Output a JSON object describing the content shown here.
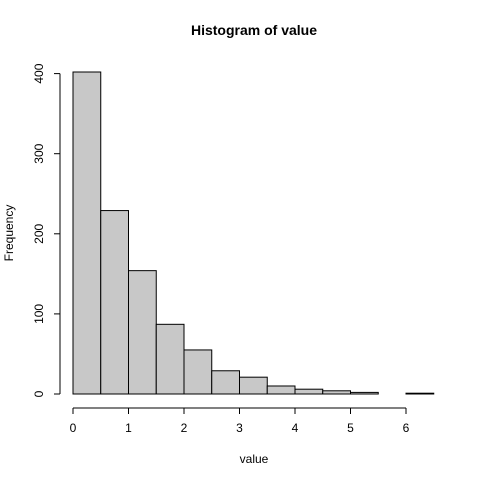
{
  "chart_data": {
    "type": "bar",
    "subtype": "histogram",
    "title": "Histogram of value",
    "xlabel": "value",
    "ylabel": "Frequency",
    "bin_edges": [
      0,
      0.5,
      1,
      1.5,
      2,
      2.5,
      3,
      3.5,
      4,
      4.5,
      5,
      5.5,
      6,
      6.5
    ],
    "values": [
      402,
      229,
      154,
      87,
      55,
      29,
      21,
      10,
      6,
      4,
      2,
      0,
      1
    ],
    "xticks": [
      0,
      1,
      2,
      3,
      4,
      5,
      6
    ],
    "yticks": [
      0,
      100,
      200,
      300,
      400
    ],
    "xlim": [
      0,
      6.5
    ],
    "ylim": [
      0,
      402
    ],
    "bar_color": "#c8c8c8",
    "grid": false
  }
}
